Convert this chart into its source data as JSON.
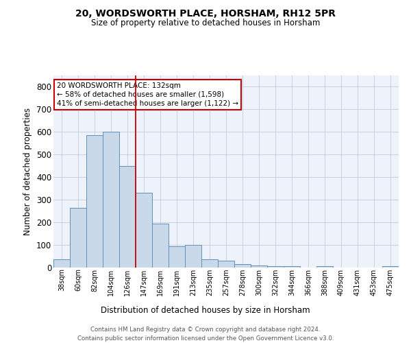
{
  "title_line1": "20, WORDSWORTH PLACE, HORSHAM, RH12 5PR",
  "title_line2": "Size of property relative to detached houses in Horsham",
  "xlabel": "Distribution of detached houses by size in Horsham",
  "ylabel": "Number of detached properties",
  "categories": [
    "38sqm",
    "60sqm",
    "82sqm",
    "104sqm",
    "126sqm",
    "147sqm",
    "169sqm",
    "191sqm",
    "213sqm",
    "235sqm",
    "257sqm",
    "278sqm",
    "300sqm",
    "322sqm",
    "344sqm",
    "366sqm",
    "388sqm",
    "409sqm",
    "431sqm",
    "453sqm",
    "475sqm"
  ],
  "values": [
    35,
    265,
    585,
    600,
    450,
    330,
    195,
    95,
    100,
    35,
    30,
    15,
    10,
    6,
    5,
    1,
    5,
    0,
    0,
    0,
    5
  ],
  "bar_color": "#c9d9ea",
  "bar_edge_color": "#6090b8",
  "red_line_index": 4,
  "annotation_text": "20 WORDSWORTH PLACE: 132sqm\n← 58% of detached houses are smaller (1,598)\n41% of semi-detached houses are larger (1,122) →",
  "annotation_box_color": "#ffffff",
  "annotation_box_edge": "#cc0000",
  "red_line_color": "#cc0000",
  "ylim": [
    0,
    850
  ],
  "yticks": [
    0,
    100,
    200,
    300,
    400,
    500,
    600,
    700,
    800
  ],
  "footer_line1": "Contains HM Land Registry data © Crown copyright and database right 2024.",
  "footer_line2": "Contains public sector information licensed under the Open Government Licence v3.0.",
  "bg_color": "#eef2fa",
  "grid_color": "#c8d0e0"
}
